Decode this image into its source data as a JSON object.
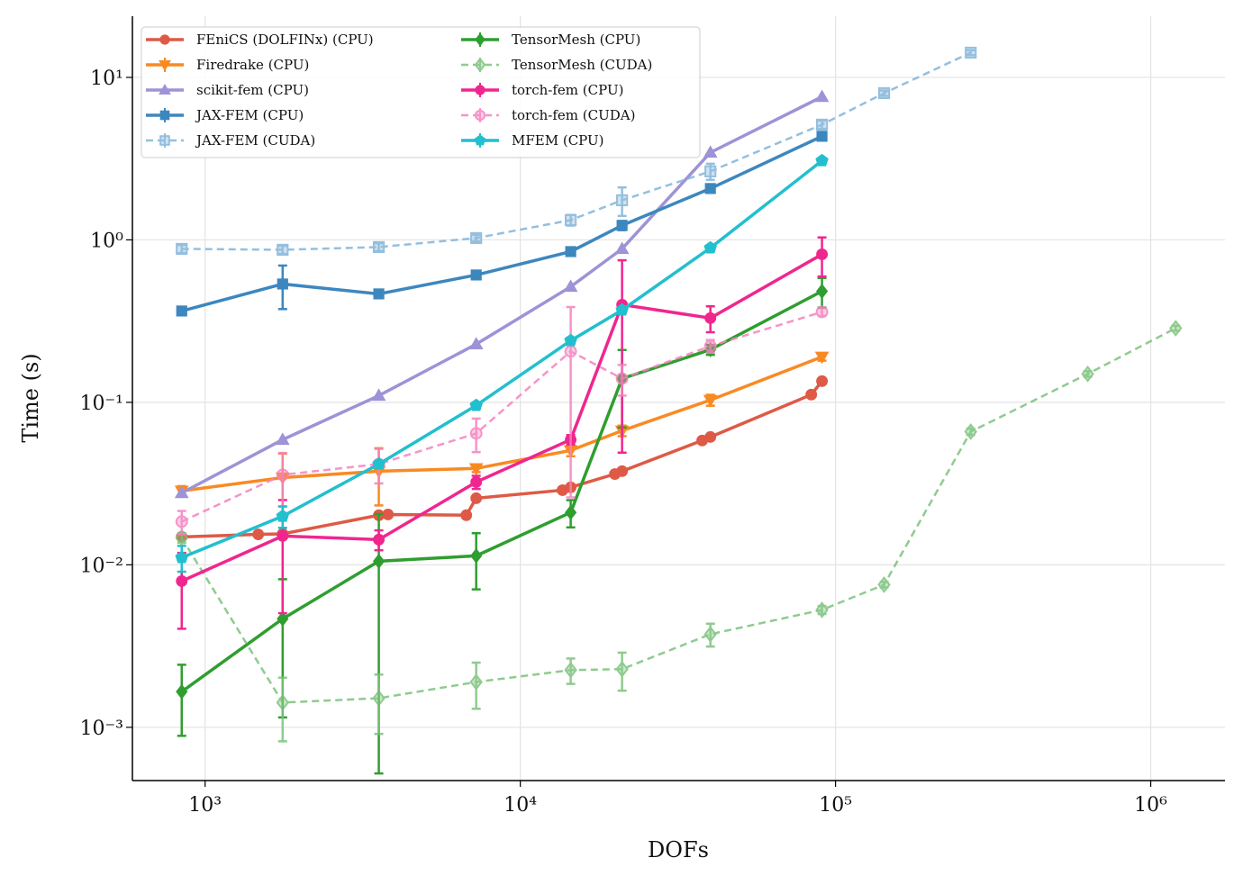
{
  "chart_data": {
    "type": "line",
    "xlabel": "DOFs",
    "ylabel": "Time (s)",
    "xscale": "log",
    "yscale": "log",
    "grid": true,
    "legend": "upper left",
    "xlim": [
      588,
      1720000
    ],
    "ylim": [
      0.00047,
      23.8
    ],
    "xticks": [
      {
        "value": 1000,
        "label": "10³"
      },
      {
        "value": 10000,
        "label": "10⁴"
      },
      {
        "value": 100000,
        "label": "10⁵"
      },
      {
        "value": 1000000,
        "label": "10⁶"
      }
    ],
    "yticks": [
      {
        "value": 0.001,
        "label": "10⁻³"
      },
      {
        "value": 0.01,
        "label": "10⁻²"
      },
      {
        "value": 0.1,
        "label": "10⁻¹"
      },
      {
        "value": 1,
        "label": "10⁰"
      },
      {
        "value": 10,
        "label": "10¹"
      }
    ],
    "series": [
      {
        "name": "FEniCS (DOLFINx) (CPU)",
        "color": "#de5a46",
        "marker": "circle",
        "linestyle": "solid",
        "x": [
          843,
          1474,
          1762,
          3557,
          3803,
          6740,
          7245,
          13610,
          14450,
          19950,
          21030,
          37750,
          40090,
          83750,
          90580
        ],
        "values": [
          0.01485,
          0.0154,
          0.0155,
          0.0202,
          0.0204,
          0.0202,
          0.0257,
          0.0288,
          0.03,
          0.0362,
          0.0377,
          0.0582,
          0.0612,
          0.1115,
          0.135
        ]
      },
      {
        "name": "Firedrake (CPU)",
        "color": "#f98a22",
        "marker": "triangle-down",
        "linestyle": "solid",
        "x": [
          843,
          1762,
          3557,
          7245,
          14450,
          21030,
          40090,
          90580
        ],
        "values": [
          0.0285,
          0.0344,
          0.0377,
          0.0392,
          0.0506,
          0.0669,
          0.1033,
          0.1905
        ],
        "errors": [
          0.002,
          0.014,
          0.0145,
          0.002,
          0.004,
          0.005,
          0.008,
          0.01
        ]
      },
      {
        "name": "scikit-fem (CPU)",
        "color": "#9d93d6",
        "marker": "triangle-up",
        "linestyle": "solid",
        "x": [
          843,
          1762,
          3557,
          7245,
          14450,
          21030,
          40090,
          90580
        ],
        "values": [
          0.0277,
          0.0589,
          0.11,
          0.228,
          0.515,
          0.881,
          3.45,
          7.6
        ]
      },
      {
        "name": "JAX-FEM (CPU)",
        "color": "#3d87bf",
        "marker": "square",
        "linestyle": "solid",
        "x": [
          843,
          1762,
          3557,
          7245,
          14450,
          21030,
          40090,
          90580
        ],
        "values": [
          0.365,
          0.535,
          0.465,
          0.608,
          0.847,
          1.227,
          2.07,
          4.34
        ],
        "errors": [
          0.02,
          0.16,
          0.02,
          0.03,
          0.04,
          0.08,
          0.1,
          0.2
        ]
      },
      {
        "name": "JAX-FEM (CUDA)",
        "color": "#83b5d9",
        "marker": "square",
        "linestyle": "dashed",
        "x": [
          843,
          1762,
          3557,
          7245,
          14450,
          21030,
          40090,
          90580,
          142600,
          268500
        ],
        "values": [
          0.88,
          0.869,
          0.903,
          1.026,
          1.324,
          1.753,
          2.64,
          5.12,
          8.0,
          14.2
        ],
        "errors": [
          0.05,
          0.05,
          0.05,
          0.05,
          0.1,
          0.35,
          0.3,
          0.3,
          0.3,
          0.5
        ]
      },
      {
        "name": "TensorMesh (CPU)",
        "color": "#2f9e30",
        "marker": "diamond",
        "linestyle": "solid",
        "x": [
          843,
          1762,
          3557,
          7245,
          14450,
          21030,
          40090,
          90580
        ],
        "values": [
          0.001656,
          0.00465,
          0.01052,
          0.01136,
          0.021,
          0.14,
          0.211,
          0.483
        ],
        "errors": [
          0.00077,
          0.0035,
          0.01,
          0.0043,
          0.004,
          0.07,
          0.015,
          0.1
        ]
      },
      {
        "name": "TensorMesh (CUDA)",
        "color": "#7cc27c",
        "marker": "diamond",
        "linestyle": "dashed",
        "x": [
          843,
          1762,
          3557,
          7245,
          14450,
          21030,
          40090,
          90580,
          142600,
          268500,
          631000,
          1200000
        ],
        "values": [
          0.01466,
          0.00142,
          0.00151,
          0.0019,
          0.00225,
          0.00228,
          0.00374,
          0.00528,
          0.00755,
          0.066,
          0.1496,
          0.286
        ],
        "errors": [
          0.001,
          0.0006,
          0.0006,
          0.0006,
          0.0004,
          0.0006,
          0.0006,
          0.0003,
          0.0003,
          0.003,
          0.006,
          0.01
        ]
      },
      {
        "name": "torch-fem (CPU)",
        "color": "#f0268f",
        "marker": "circle",
        "linestyle": "solid",
        "x": [
          843,
          1762,
          3557,
          7245,
          14450,
          21030,
          40090,
          90580
        ],
        "values": [
          0.00794,
          0.01504,
          0.01429,
          0.0323,
          0.0589,
          0.399,
          0.33,
          0.815
        ],
        "errors": [
          0.0039,
          0.01,
          0.002,
          0.003,
          0.004,
          0.35,
          0.06,
          0.22
        ]
      },
      {
        "name": "torch-fem (CUDA)",
        "color": "#f582bf",
        "marker": "circle",
        "linestyle": "dashed",
        "x": [
          843,
          1762,
          3557,
          7245,
          14450,
          21030,
          40090,
          90580
        ],
        "values": [
          0.01845,
          0.0358,
          0.0417,
          0.0644,
          0.206,
          0.14,
          0.222,
          0.36
        ],
        "errors": [
          0.003,
          0.013,
          0.01,
          0.015,
          0.18,
          0.03,
          0.02,
          0.02
        ]
      },
      {
        "name": "MFEM (CPU)",
        "color": "#22bfcf",
        "marker": "pentagon",
        "linestyle": "solid",
        "x": [
          843,
          1762,
          3557,
          7245,
          14450,
          21030,
          40090,
          90580
        ],
        "values": [
          0.01107,
          0.0199,
          0.0417,
          0.0957,
          0.2397,
          0.37,
          0.892,
          3.07
        ],
        "errors": [
          0.002,
          0.003,
          0.002,
          0.004,
          0.01,
          0.01,
          0.02,
          0.05
        ]
      }
    ]
  }
}
